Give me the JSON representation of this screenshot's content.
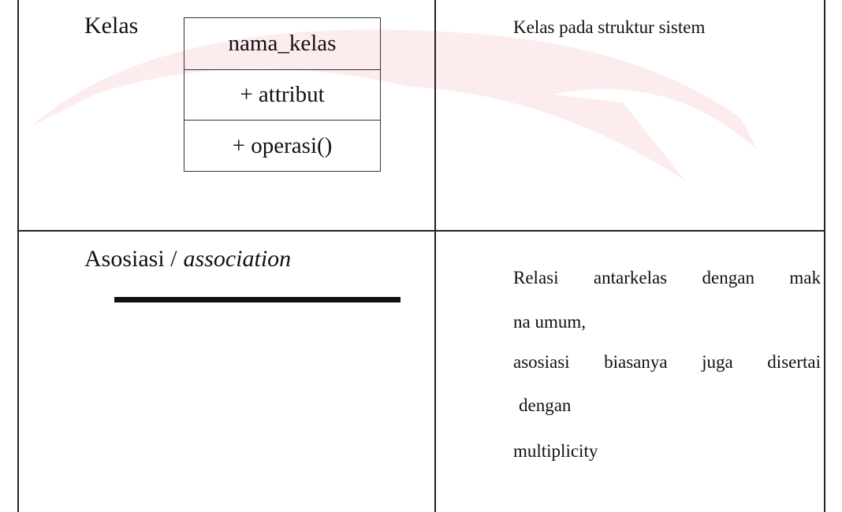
{
  "table": {
    "rows": [
      {
        "symbol_label": "Kelas",
        "uml_class": {
          "name": "nama_kelas",
          "attribute": "+ attribut",
          "operation": "+ operasi()"
        },
        "description": [
          "Kelas pada struktur sistem"
        ]
      },
      {
        "symbol_label": "Asosiasi /",
        "symbol_label_italic": "association",
        "description": [
          "Relasi antarkelas dengan mak",
          "na umum,",
          "asosiasi biasanya juga disertai",
          "dengan",
          "multiplicity"
        ]
      }
    ]
  }
}
